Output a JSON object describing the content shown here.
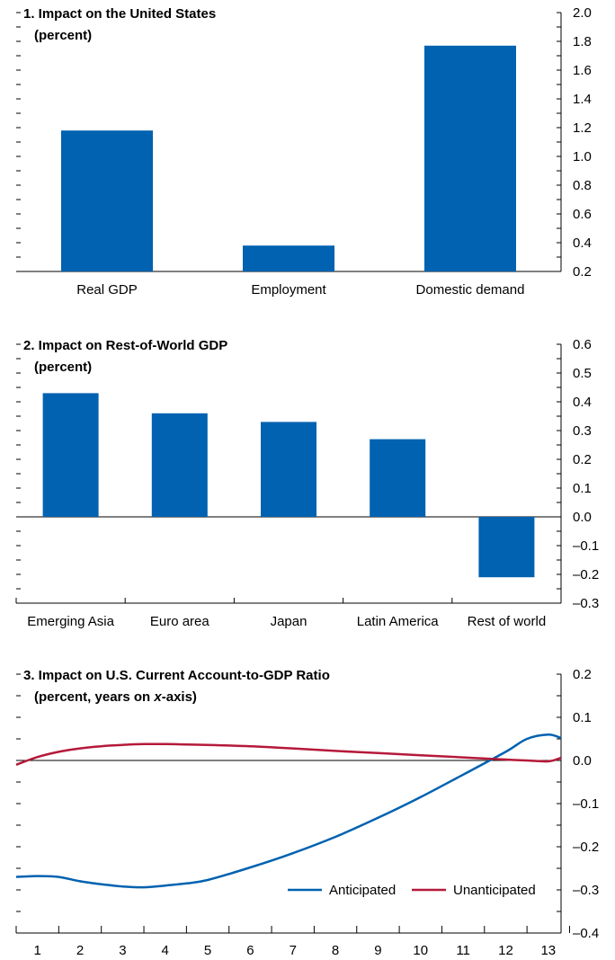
{
  "colors": {
    "bar": "#0062b0",
    "anticipated": "#0062b0",
    "unanticipated": "#b5193a",
    "axis": "#000000"
  },
  "chart_data": [
    {
      "type": "bar",
      "title": "1. Impact on the United States",
      "subtitle": "(percent)",
      "categories": [
        "Real GDP",
        "Employment",
        "Domestic demand"
      ],
      "values": [
        1.18,
        0.38,
        1.77
      ],
      "ylim": [
        0.2,
        2.0
      ],
      "yticks": [
        0.2,
        0.4,
        0.6,
        0.8,
        1.0,
        1.2,
        1.4,
        1.6,
        1.8,
        2.0
      ],
      "ytick_labels": [
        "0.2",
        "0.4",
        "0.6",
        "0.8",
        "1.0",
        "1.2",
        "1.4",
        "1.6",
        "1.8",
        "2.0"
      ],
      "grid": false
    },
    {
      "type": "bar",
      "title": "2. Impact on Rest-of-World GDP",
      "subtitle": "(percent)",
      "categories": [
        "Emerging Asia",
        "Euro area",
        "Japan",
        "Latin America",
        "Rest of world"
      ],
      "values": [
        0.43,
        0.36,
        0.33,
        0.27,
        -0.21
      ],
      "ylim": [
        -0.3,
        0.6
      ],
      "yticks": [
        -0.3,
        -0.2,
        -0.1,
        0.0,
        0.1,
        0.2,
        0.3,
        0.4,
        0.5,
        0.6
      ],
      "ytick_labels": [
        "–0.3",
        "–0.2",
        "–0.1",
        "0.0",
        "0.1",
        "0.2",
        "0.3",
        "0.4",
        "0.5",
        "0.6"
      ],
      "grid": false
    },
    {
      "type": "line",
      "title": "3. Impact on U.S. Current Account-to-GDP Ratio",
      "subtitle_parts": [
        "(percent, years on ",
        "x",
        "-axis)"
      ],
      "x": [
        0.5,
        1,
        1.5,
        2,
        2.5,
        3,
        3.5,
        4,
        4.5,
        5,
        6,
        7,
        8,
        9,
        10,
        11,
        12,
        12.5,
        13,
        13.3
      ],
      "xticks": [
        1,
        2,
        3,
        4,
        5,
        6,
        7,
        8,
        9,
        10,
        11,
        12,
        13
      ],
      "xlim": [
        0.5,
        13.3
      ],
      "ylim": [
        -0.4,
        0.2
      ],
      "yticks": [
        -0.4,
        -0.3,
        -0.2,
        -0.1,
        0.0,
        0.1,
        0.2
      ],
      "ytick_labels": [
        "–0.4",
        "–0.3",
        "–0.2",
        "–0.1",
        "0.0",
        "0.1",
        "0.2"
      ],
      "series": [
        {
          "name": "Anticipated",
          "values": [
            -0.27,
            -0.268,
            -0.27,
            -0.28,
            -0.287,
            -0.292,
            -0.294,
            -0.29,
            -0.285,
            -0.277,
            -0.248,
            -0.215,
            -0.177,
            -0.133,
            -0.085,
            -0.033,
            0.02,
            0.05,
            0.06,
            0.052
          ]
        },
        {
          "name": "Unanticipated",
          "values": [
            -0.01,
            0.008,
            0.02,
            0.028,
            0.033,
            0.036,
            0.038,
            0.038,
            0.037,
            0.036,
            0.033,
            0.028,
            0.022,
            0.017,
            0.012,
            0.007,
            0.002,
            0.0,
            -0.002,
            0.006
          ]
        }
      ],
      "legend": "bottom-right",
      "zero_line": true,
      "grid": false
    }
  ]
}
